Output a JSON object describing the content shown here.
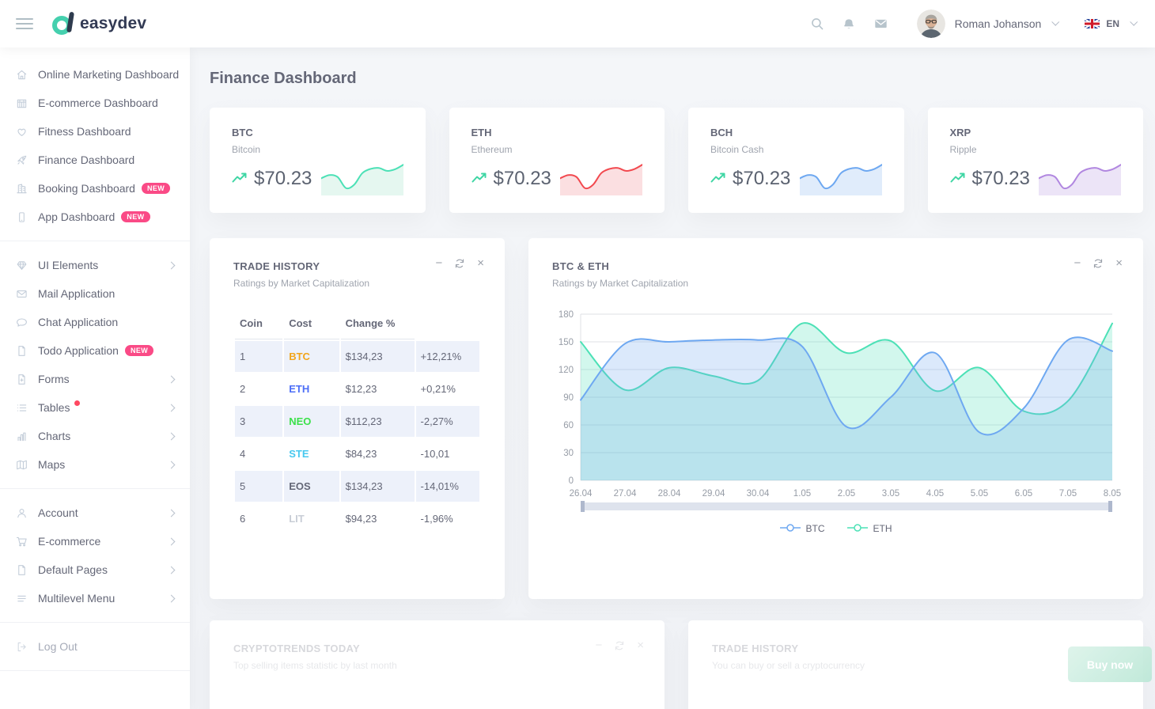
{
  "topbar": {
    "logo_text": "easydev",
    "user_name": "Roman Johanson",
    "lang_label": "EN"
  },
  "glyphs": {
    "minimize": "−",
    "close": "×"
  },
  "page": {
    "title": "Finance Dashboard"
  },
  "sidebar": {
    "groups": [
      {
        "items": [
          {
            "label": "Online Marketing Dashboard",
            "icon": "home-icon"
          },
          {
            "label": "E-commerce Dashboard",
            "icon": "store-icon"
          },
          {
            "label": "Fitness Dashboard",
            "icon": "heart-icon"
          },
          {
            "label": "Finance Dashboard",
            "icon": "rocket-icon"
          },
          {
            "label": "Booking Dashboard",
            "icon": "building-icon",
            "badge": "NEW"
          },
          {
            "label": "App Dashboard",
            "icon": "smartphone-icon",
            "badge": "NEW"
          }
        ]
      },
      {
        "items": [
          {
            "label": "UI Elements",
            "icon": "diamond-icon",
            "arrow": true
          },
          {
            "label": "Mail Application",
            "icon": "envelope-icon"
          },
          {
            "label": "Chat Application",
            "icon": "chat-icon"
          },
          {
            "label": "Todo Application",
            "icon": "file-icon",
            "badge": "NEW"
          },
          {
            "label": "Forms",
            "icon": "file-plus-icon",
            "arrow": true
          },
          {
            "label": "Tables",
            "icon": "list-icon",
            "dot": true,
            "arrow": true
          },
          {
            "label": "Charts",
            "icon": "bar-chart-icon",
            "arrow": true
          },
          {
            "label": "Maps",
            "icon": "map-icon",
            "arrow": true
          }
        ]
      },
      {
        "items": [
          {
            "label": "Account",
            "icon": "user-icon",
            "arrow": true
          },
          {
            "label": "E-commerce",
            "icon": "cart-icon",
            "arrow": true
          },
          {
            "label": "Default Pages",
            "icon": "page-icon",
            "arrow": true
          },
          {
            "label": "Multilevel Menu",
            "icon": "menu-lines-icon",
            "arrow": true
          }
        ]
      },
      {
        "items": [
          {
            "label": "Log Out",
            "icon": "logout-icon",
            "muted": true
          }
        ]
      }
    ]
  },
  "cards": {
    "sparkline": [
      48,
      58,
      52,
      18,
      28,
      64,
      77,
      80,
      71,
      76,
      90
    ],
    "trend_color": "#3fd6a4",
    "items": [
      {
        "symbol": "BTC",
        "name": "Bitcoin",
        "price": "$70.23",
        "line_color": "#4ce1b6",
        "fill_color": "#e5f7f0"
      },
      {
        "symbol": "ETH",
        "name": "Ethereum",
        "price": "$70.23",
        "line_color": "#f2494f",
        "fill_color": "#fbdfe1"
      },
      {
        "symbol": "BCH",
        "name": "Bitcoin Cash",
        "price": "$70.23",
        "line_color": "#6ea8f1",
        "fill_color": "#e0ecfb"
      },
      {
        "symbol": "XRP",
        "name": "Ripple",
        "price": "$70.23",
        "line_color": "#b187e0",
        "fill_color": "#ece4f7"
      }
    ]
  },
  "trade_history": {
    "title": "TRADE HISTORY",
    "subtitle": "Ratings by Market Capitalization",
    "columns": [
      "Coin",
      "Cost",
      "Change %"
    ],
    "rows": [
      {
        "rank": "1",
        "symbol": "BTC",
        "symbol_color": "#f2a51c",
        "cost": "$134,23",
        "change": "+12,21%",
        "highlight": true
      },
      {
        "rank": "2",
        "symbol": "ETH",
        "symbol_color": "#4c6ef7",
        "cost": "$12,23",
        "change": "+0,21%",
        "highlight": false
      },
      {
        "rank": "3",
        "symbol": "NEO",
        "symbol_color": "#3ce14b",
        "cost": "$112,23",
        "change": "-2,27%",
        "highlight": true
      },
      {
        "rank": "4",
        "symbol": "STE",
        "symbol_color": "#47c8ef",
        "cost": "$84,23",
        "change": "-10,01",
        "highlight": false
      },
      {
        "rank": "5",
        "symbol": "EOS",
        "symbol_color": "#646777",
        "cost": "$134,23",
        "change": "-14,01%",
        "highlight": true
      },
      {
        "rank": "6",
        "symbol": "LIT",
        "symbol_color": "#c8cdd6",
        "cost": "$94,23",
        "change": "-1,96%",
        "highlight": false
      }
    ]
  },
  "chart_data": {
    "type": "area",
    "title": "BTC & ETH",
    "subtitle": "Ratings by Market Capitalization",
    "x": [
      "26.04",
      "27.04",
      "28.04",
      "29.04",
      "30.04",
      "1.05",
      "2.05",
      "3.05",
      "4.05",
      "5.05",
      "6.05",
      "7.05",
      "8.05"
    ],
    "ylim": [
      0,
      180
    ],
    "yticks": [
      180,
      150,
      120,
      90,
      60,
      30,
      0
    ],
    "grid": true,
    "legend_position": "bottom",
    "series": [
      {
        "name": "BTC",
        "color": "#6ea8f1",
        "fill_opacity": 0.25,
        "values": [
          87,
          148,
          150,
          152,
          152,
          145,
          58,
          90,
          138,
          52,
          78,
          152,
          140
        ]
      },
      {
        "name": "ETH",
        "color": "#4ce1b6",
        "fill_opacity": 0.25,
        "values": [
          150,
          98,
          122,
          113,
          108,
          170,
          138,
          151,
          97,
          122,
          75,
          86,
          170
        ]
      }
    ]
  },
  "bottom": {
    "left": {
      "title": "CRYPTOTRENDS TODAY",
      "subtitle": "Top selling items statistic by last month"
    },
    "right": {
      "title": "TRADE HISTORY",
      "subtitle": "You can buy or sell a cryptocurrency",
      "buy_label": "Buy now"
    }
  }
}
